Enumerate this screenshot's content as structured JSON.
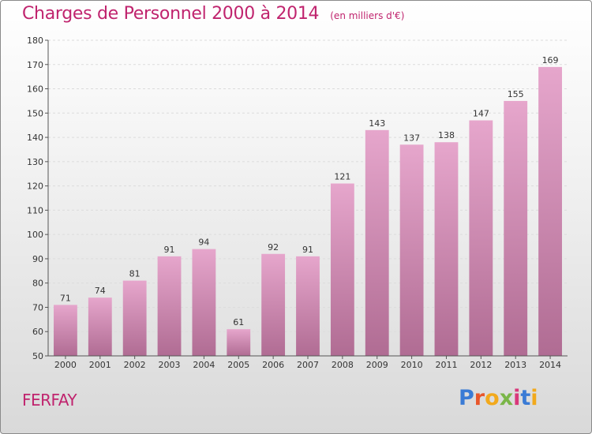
{
  "header": {
    "title": "Charges de Personnel 2000 à 2014",
    "subtitle": "(en milliers d'€)"
  },
  "footer": {
    "commune": "FERFAY",
    "logo_letters": [
      "P",
      "r",
      "o",
      "x",
      "i",
      "t",
      "i"
    ]
  },
  "colors": {
    "accent": "#c0246e",
    "bar_top": "#e6a6cc",
    "bar_bottom": "#b06c93"
  },
  "chart_data": {
    "type": "bar",
    "categories": [
      "2000",
      "2001",
      "2002",
      "2003",
      "2004",
      "2005",
      "2006",
      "2007",
      "2008",
      "2009",
      "2010",
      "2011",
      "2012",
      "2013",
      "2014"
    ],
    "values": [
      71,
      74,
      81,
      91,
      94,
      61,
      92,
      91,
      121,
      143,
      137,
      138,
      147,
      155,
      169
    ],
    "title": "Charges de Personnel 2000 à 2014",
    "xlabel": "",
    "ylabel": "",
    "ylim": [
      50,
      180
    ],
    "yticks": [
      50,
      60,
      70,
      80,
      90,
      100,
      110,
      120,
      130,
      140,
      150,
      160,
      170,
      180
    ],
    "grid": true,
    "legend": "none"
  }
}
